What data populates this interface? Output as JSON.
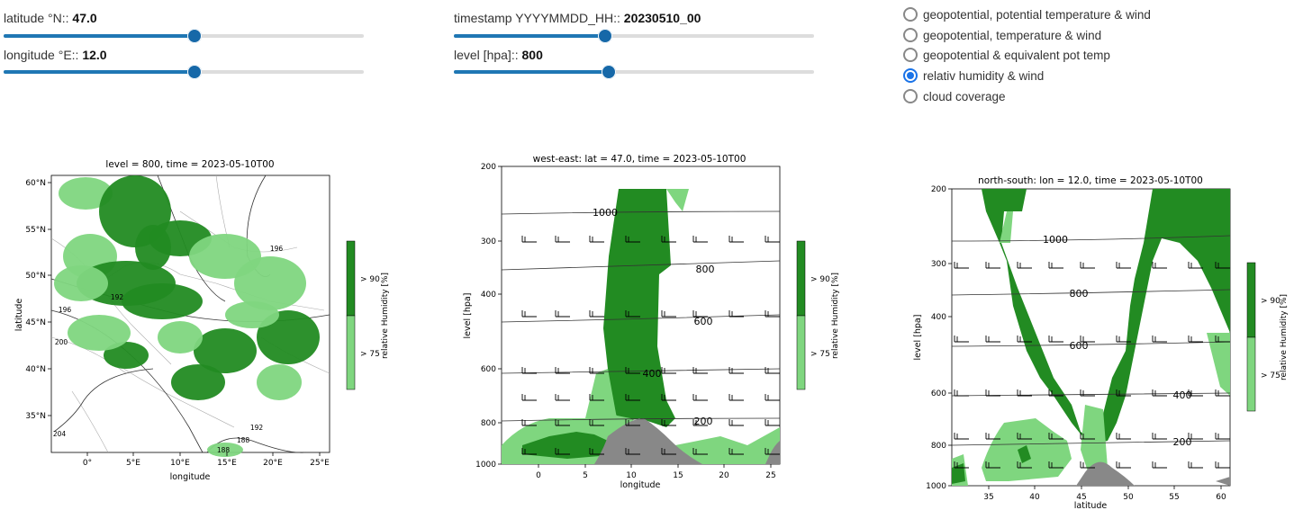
{
  "controls": {
    "latitude": {
      "label": "latitude °N:: ",
      "value": "47.0",
      "fraction": 0.53
    },
    "longitude": {
      "label": "longitude °E:: ",
      "value": "12.0",
      "fraction": 0.53
    },
    "timestamp": {
      "label": "timestamp YYYYMMDD_HH:: ",
      "value": "20230510_00",
      "fraction": 0.42
    },
    "level": {
      "label": "level [hpa]:: ",
      "value": "800",
      "fraction": 0.43
    }
  },
  "radio_options": [
    {
      "label": "geopotential, potential temperature & wind",
      "selected": false
    },
    {
      "label": "geopotential, temperature & wind",
      "selected": false
    },
    {
      "label": "geopotential & equivalent pot temp",
      "selected": false
    },
    {
      "label": "relativ humidity & wind",
      "selected": true
    },
    {
      "label": "cloud coverage",
      "selected": false
    }
  ],
  "colors": {
    "accent": "#1f77b4",
    "rh_high": "#228b22",
    "rh_mid": "#7fd67f",
    "terrain": "#888888"
  },
  "chart_data": [
    {
      "type": "heatmap",
      "title": "level = 800, time = 2023-05-10T00",
      "xlabel": "longitude",
      "ylabel": "latitude",
      "xticks": [
        "0°",
        "5°E",
        "10°E",
        "15°E",
        "20°E",
        "25°E"
      ],
      "yticks": [
        "35°N",
        "40°N",
        "45°N",
        "50°N",
        "55°N",
        "60°N"
      ],
      "contour_labels": [
        "192",
        "196",
        "200",
        "204",
        "188",
        "188",
        "192",
        "196"
      ],
      "colorbar": {
        "label": "relative Humidity [%]",
        "levels": [
          "> 75",
          "> 90"
        ]
      }
    },
    {
      "type": "heatmap",
      "title": "west-east: lat = 47.0, time = 2023-05-10T00",
      "xlabel": "longitude",
      "ylabel": "level [hpa]",
      "x": [
        0,
        5,
        10,
        15,
        20,
        25
      ],
      "y": [
        200,
        300,
        400,
        600,
        800,
        1000
      ],
      "contour_labels": [
        "1000",
        "800",
        "600",
        "400",
        "200"
      ],
      "colorbar": {
        "label": "relative Humidity [%]",
        "levels": [
          "> 75",
          "> 90"
        ]
      }
    },
    {
      "type": "heatmap",
      "title": "north-south: lon = 12.0, time = 2023-05-10T00",
      "xlabel": "latitude",
      "ylabel": "level [hpa]",
      "x": [
        35,
        40,
        45,
        50,
        55,
        60
      ],
      "y": [
        200,
        300,
        400,
        600,
        800,
        1000
      ],
      "contour_labels": [
        "1000",
        "800",
        "600",
        "400",
        "200"
      ],
      "colorbar": {
        "label": "relative Humidity [%]",
        "levels": [
          "> 75",
          "> 90"
        ]
      }
    }
  ]
}
